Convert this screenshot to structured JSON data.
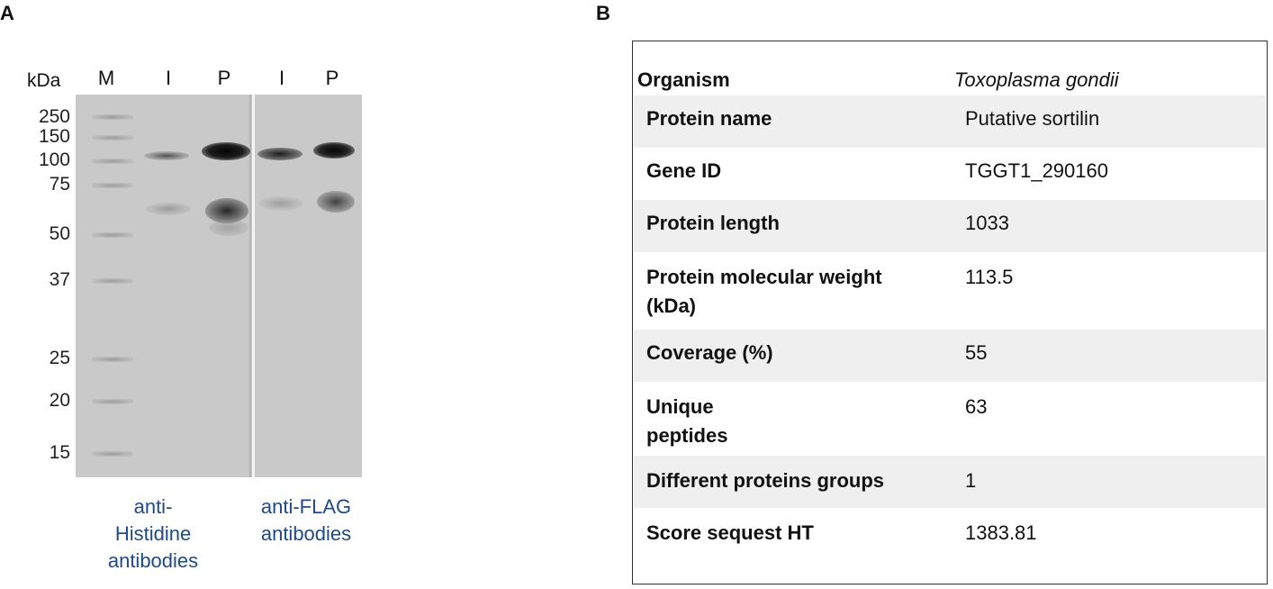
{
  "panelA": {
    "label": "A",
    "unit_label": "kDa",
    "lanes": [
      "M",
      "I",
      "P",
      "I",
      "P"
    ],
    "markers": [
      "250",
      "150",
      "100",
      "75",
      "50",
      "37",
      "25",
      "20",
      "15"
    ],
    "captions": {
      "his": "anti-\nHistidine\nantibodies",
      "flag": "anti-FLAG\nantibodies"
    },
    "band_color": "#111111",
    "caption_color": "#1f4a8a"
  },
  "panelB": {
    "label": "B",
    "organism_label": "Organism",
    "organism_value": "Toxoplasma gondii",
    "rows": [
      {
        "key": "Protein name",
        "value": "Putative sortilin"
      },
      {
        "key": "Gene ID",
        "value": "TGGT1_290160"
      },
      {
        "key": "Protein length",
        "value": "1033"
      },
      {
        "key": "Protein molecular weight\n(kDa)",
        "value": "113.5"
      },
      {
        "key": "Coverage (%)",
        "value": "55"
      },
      {
        "key": "Unique\n peptides",
        "value": "63"
      },
      {
        "key": "Different proteins groups",
        "value": "1"
      },
      {
        "key": "Score sequest HT",
        "value": "1383.81"
      }
    ]
  }
}
